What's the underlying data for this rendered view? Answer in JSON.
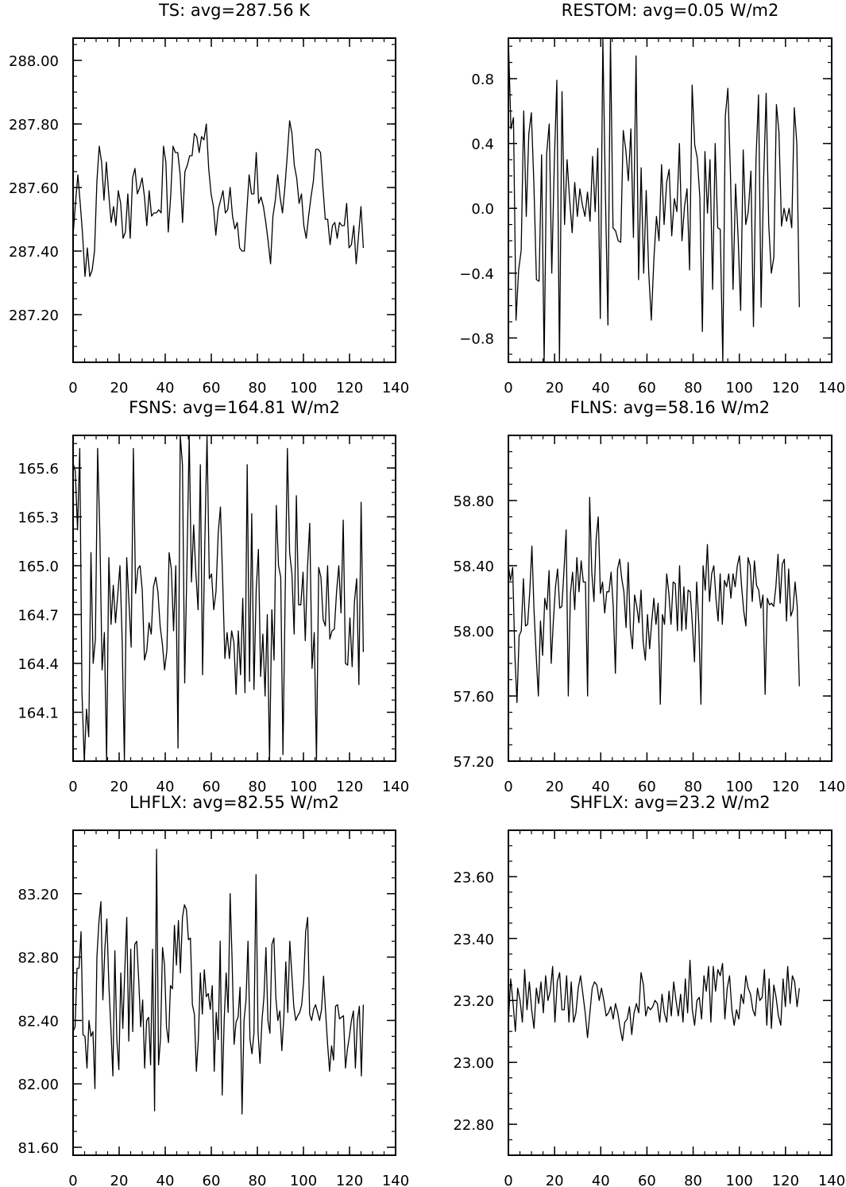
{
  "chart_data": [
    {
      "type": "line",
      "title": "TS: avg=287.56 K",
      "xlabel": "",
      "ylabel": "",
      "xlim": [
        0,
        140
      ],
      "ylim": [
        287.05,
        288.07
      ],
      "xticks": [
        0,
        20,
        40,
        60,
        80,
        100,
        120,
        140
      ],
      "xtick_labels": [
        "0",
        "20",
        "40",
        "60",
        "80",
        "100",
        "120",
        "140"
      ],
      "yticks": [
        287.2,
        287.4,
        287.6,
        287.8,
        288.0
      ],
      "ytick_labels": [
        "287.20",
        "287.40",
        "287.60",
        "287.80",
        "288.00"
      ],
      "grid": false,
      "series": [
        {
          "values": [
            287.45,
            287.55,
            287.64,
            287.55,
            287.45,
            287.32,
            287.41,
            287.32,
            287.34,
            287.4,
            287.62,
            287.73,
            287.68,
            287.56,
            287.68,
            287.58,
            287.49,
            287.54,
            287.48,
            287.59,
            287.55,
            287.44,
            287.46,
            287.58,
            287.44,
            287.63,
            287.66,
            287.58,
            287.6,
            287.63,
            287.57,
            287.48,
            287.59,
            287.51,
            287.52,
            287.52,
            287.53,
            287.52,
            287.73,
            287.68,
            287.46,
            287.57,
            287.73,
            287.71,
            287.71,
            287.64,
            287.49,
            287.65,
            287.67,
            287.7,
            287.7,
            287.77,
            287.76,
            287.71,
            287.76,
            287.75,
            287.8,
            287.66,
            287.58,
            287.54,
            287.45,
            287.53,
            287.56,
            287.59,
            287.52,
            287.53,
            287.6,
            287.51,
            287.47,
            287.49,
            287.41,
            287.4,
            287.4,
            287.52,
            287.64,
            287.58,
            287.58,
            287.71,
            287.55,
            287.57,
            287.54,
            287.49,
            287.43,
            287.36,
            287.51,
            287.56,
            287.64,
            287.57,
            287.52,
            287.6,
            287.7,
            287.81,
            287.77,
            287.67,
            287.63,
            287.55,
            287.58,
            287.48,
            287.44,
            287.51,
            287.57,
            287.62,
            287.72,
            287.72,
            287.71,
            287.6,
            287.5,
            287.5,
            287.42,
            287.48,
            287.49,
            287.44,
            287.49,
            287.48,
            287.48,
            287.55,
            287.41,
            287.42,
            287.48,
            287.36,
            287.45,
            287.54,
            287.41
          ]
        }
      ]
    },
    {
      "type": "line",
      "title": "RESTOM: avg=0.05 W/m2",
      "xlabel": "",
      "ylabel": "",
      "xlim": [
        0,
        140
      ],
      "ylim": [
        -0.95,
        1.05
      ],
      "xticks": [
        0,
        20,
        40,
        60,
        80,
        100,
        120,
        140
      ],
      "xtick_labels": [
        "0",
        "20",
        "40",
        "60",
        "80",
        "100",
        "120",
        "140"
      ],
      "yticks": [
        -0.8,
        -0.4,
        0.0,
        0.4,
        0.8
      ],
      "ytick_labels": [
        "−0.8",
        "−0.4",
        "0.0",
        "0.4",
        "0.8"
      ],
      "grid": false,
      "series": [
        {
          "values": [
            1.05,
            0.49,
            0.56,
            -0.69,
            -0.38,
            -0.26,
            0.6,
            -0.05,
            0.46,
            0.59,
            0.15,
            -0.44,
            -0.45,
            0.33,
            -0.95,
            0.34,
            0.52,
            -0.4,
            0.28,
            0.79,
            -0.95,
            0.72,
            -0.1,
            0.3,
            0.05,
            -0.15,
            0.16,
            -0.05,
            0.12,
            0.02,
            -0.05,
            0.1,
            -0.08,
            0.32,
            -0.02,
            0.37,
            -0.68,
            1.05,
            0.1,
            -0.72,
            1.05,
            -0.12,
            -0.14,
            -0.2,
            -0.21,
            0.48,
            0.36,
            0.17,
            0.49,
            -0.18,
            0.94,
            -0.44,
            0.25,
            -0.4,
            0.11,
            -0.4,
            -0.69,
            -0.31,
            -0.05,
            -0.2,
            0.27,
            -0.1,
            0.16,
            0.24,
            -0.17,
            0.06,
            -0.02,
            0.4,
            -0.2,
            0.01,
            0.12,
            -0.38,
            0.76,
            0.39,
            0.31,
            0.07,
            -0.76,
            0.35,
            -0.03,
            0.3,
            -0.5,
            0.4,
            -0.12,
            -0.13,
            -0.95,
            0.57,
            0.74,
            0.22,
            -0.5,
            0.15,
            -0.18,
            -0.63,
            0.36,
            -0.1,
            -0.02,
            0.23,
            -0.73,
            0.3,
            0.7,
            -0.61,
            0.18,
            0.71,
            -0.1,
            -0.4,
            -0.3,
            0.64,
            0.47,
            -0.11,
            0.0,
            -0.08,
            0.0,
            -0.12,
            0.62,
            0.4,
            -0.61
          ]
        }
      ]
    },
    {
      "type": "line",
      "title": "FSNS: avg=164.81 W/m2",
      "xlabel": "",
      "ylabel": "",
      "xlim": [
        0,
        140
      ],
      "ylim": [
        163.8,
        165.8
      ],
      "xticks": [
        0,
        20,
        40,
        60,
        80,
        100,
        120,
        140
      ],
      "xtick_labels": [
        "0",
        "20",
        "40",
        "60",
        "80",
        "100",
        "120",
        "140"
      ],
      "yticks": [
        164.1,
        164.4,
        164.7,
        165.0,
        165.3,
        165.6
      ],
      "ytick_labels": [
        "164.1",
        "164.4",
        "164.7",
        "165.0",
        "165.3",
        "165.6"
      ],
      "grid": false,
      "series": [
        {
          "values": [
            165.63,
            165.58,
            165.22,
            165.72,
            164.22,
            163.8,
            164.12,
            163.95,
            165.08,
            164.4,
            164.55,
            165.72,
            165.2,
            164.36,
            164.59,
            163.8,
            165.05,
            164.64,
            164.88,
            164.65,
            164.82,
            165.0,
            164.54,
            163.8,
            165.05,
            164.78,
            164.5,
            165.72,
            164.83,
            164.98,
            165.0,
            164.85,
            164.42,
            164.48,
            164.65,
            164.58,
            164.87,
            164.93,
            164.84,
            164.63,
            164.52,
            164.36,
            164.48,
            165.08,
            164.98,
            164.6,
            165.0,
            163.88,
            165.8,
            165.62,
            164.28,
            165.0,
            165.8,
            164.9,
            165.25,
            164.95,
            164.73,
            165.62,
            164.33,
            165.13,
            165.8,
            164.92,
            164.95,
            164.73,
            164.84,
            165.2,
            165.36,
            164.91,
            164.43,
            164.59,
            164.43,
            164.6,
            164.53,
            164.21,
            164.6,
            164.33,
            164.8,
            164.22,
            165.62,
            164.29,
            165.32,
            164.24,
            164.85,
            165.1,
            164.32,
            164.58,
            164.2,
            164.7,
            163.8,
            164.73,
            164.42,
            165.37,
            165.0,
            164.93,
            163.84,
            164.82,
            165.72,
            165.08,
            164.95,
            164.58,
            165.43,
            164.76,
            164.76,
            164.96,
            164.54,
            164.99,
            165.26,
            164.37,
            164.59,
            163.8,
            164.99,
            164.93,
            164.67,
            164.63,
            165.0,
            164.55,
            164.6,
            164.61,
            164.84,
            165.0,
            164.71,
            165.28,
            164.4,
            164.39,
            164.68,
            164.38,
            164.78,
            164.92,
            164.27,
            165.39,
            164.47
          ]
        }
      ]
    },
    {
      "type": "line",
      "title": "FLNS: avg=58.16 W/m2",
      "xlabel": "",
      "ylabel": "",
      "xlim": [
        0,
        140
      ],
      "ylim": [
        57.2,
        59.2
      ],
      "xticks": [
        0,
        20,
        40,
        60,
        80,
        100,
        120,
        140
      ],
      "xtick_labels": [
        "0",
        "20",
        "40",
        "60",
        "80",
        "100",
        "120",
        "140"
      ],
      "yticks": [
        57.2,
        57.6,
        58.0,
        58.4,
        58.8
      ],
      "ytick_labels": [
        "57.20",
        "57.60",
        "58.00",
        "58.40",
        "58.80"
      ],
      "grid": false,
      "series": [
        {
          "values": [
            58.4,
            58.31,
            58.39,
            57.86,
            57.56,
            57.97,
            58.0,
            58.32,
            58.03,
            58.04,
            58.24,
            58.52,
            58.12,
            57.85,
            57.6,
            58.06,
            57.85,
            58.2,
            58.13,
            58.37,
            57.8,
            58.06,
            58.27,
            58.38,
            58.14,
            58.15,
            58.37,
            58.62,
            57.6,
            58.23,
            58.36,
            58.13,
            58.45,
            58.24,
            58.43,
            58.3,
            58.3,
            57.6,
            58.82,
            58.36,
            58.18,
            58.56,
            58.7,
            58.23,
            58.3,
            58.11,
            58.24,
            58.24,
            58.36,
            58.15,
            57.74,
            58.38,
            58.44,
            58.32,
            58.24,
            58.02,
            58.42,
            58.01,
            57.89,
            58.22,
            58.15,
            58.05,
            58.25,
            57.93,
            57.82,
            58.1,
            57.89,
            58.06,
            58.2,
            58.04,
            58.17,
            57.55,
            58.1,
            58.04,
            58.35,
            58.23,
            58.04,
            58.3,
            58.29,
            58.0,
            58.4,
            58.0,
            58.27,
            58.01,
            58.25,
            58.24,
            58.04,
            57.81,
            58.3,
            58.04,
            57.55,
            58.4,
            58.25,
            58.53,
            58.18,
            58.35,
            58.4,
            58.2,
            58.06,
            58.35,
            58.04,
            58.31,
            58.27,
            58.35,
            58.2,
            58.35,
            58.27,
            58.4,
            58.46,
            58.27,
            58.12,
            58.03,
            58.45,
            58.4,
            58.18,
            58.43,
            58.28,
            58.25,
            58.14,
            58.22,
            57.61,
            58.2,
            58.16,
            58.17,
            58.15,
            58.27,
            58.47,
            58.17,
            58.41,
            58.44,
            58.06,
            58.38,
            58.09,
            58.13,
            58.3,
            58.15,
            57.66
          ]
        }
      ]
    },
    {
      "type": "line",
      "title": "LHFLX: avg=82.55 W/m2",
      "xlabel": "",
      "ylabel": "",
      "xlim": [
        0,
        140
      ],
      "ylim": [
        81.55,
        83.6
      ],
      "xticks": [
        0,
        20,
        40,
        60,
        80,
        100,
        120,
        140
      ],
      "xtick_labels": [
        "0",
        "20",
        "40",
        "60",
        "80",
        "100",
        "120",
        "140"
      ],
      "yticks": [
        81.6,
        82.0,
        82.4,
        82.8,
        83.2
      ],
      "ytick_labels": [
        "81.60",
        "82.00",
        "82.40",
        "82.80",
        "83.20"
      ],
      "grid": false,
      "series": [
        {
          "values": [
            82.33,
            82.36,
            82.73,
            82.73,
            82.96,
            82.31,
            82.3,
            82.1,
            82.4,
            82.3,
            82.33,
            81.97,
            82.8,
            83.02,
            83.15,
            82.53,
            82.85,
            83.04,
            82.63,
            82.35,
            82.05,
            82.84,
            82.28,
            82.09,
            82.7,
            82.35,
            82.72,
            83.05,
            82.27,
            82.85,
            82.33,
            82.88,
            82.9,
            82.66,
            82.36,
            82.53,
            82.1,
            82.4,
            82.42,
            82.12,
            82.85,
            81.83,
            83.48,
            82.12,
            82.29,
            82.86,
            82.75,
            82.36,
            82.26,
            82.62,
            82.6,
            83.0,
            82.75,
            83.03,
            82.7,
            83.05,
            83.13,
            83.1,
            82.91,
            82.92,
            82.5,
            82.44,
            82.08,
            82.28,
            82.7,
            82.44,
            82.72,
            82.55,
            82.57,
            82.47,
            82.62,
            82.08,
            82.45,
            82.28,
            82.9,
            81.93,
            82.4,
            82.7,
            82.45,
            83.2,
            82.78,
            82.25,
            82.39,
            82.42,
            82.61,
            81.81,
            82.4,
            82.53,
            82.9,
            82.28,
            82.19,
            82.32,
            83.32,
            82.33,
            82.13,
            82.4,
            82.55,
            82.86,
            82.4,
            82.32,
            82.88,
            82.92,
            82.54,
            82.4,
            82.46,
            82.21,
            82.42,
            82.77,
            82.45,
            82.9,
            82.7,
            82.49,
            82.4,
            82.43,
            82.45,
            82.5,
            82.65,
            82.96,
            83.05,
            82.44,
            82.4,
            82.47,
            82.5,
            82.45,
            82.4,
            82.47,
            82.68,
            82.46,
            82.25,
            82.08,
            82.24,
            82.15,
            82.49,
            82.5,
            82.41,
            82.42,
            82.43,
            82.1,
            82.22,
            82.3,
            82.4,
            82.46,
            82.1,
            82.4,
            82.49,
            82.05,
            82.5
          ]
        }
      ]
    },
    {
      "type": "line",
      "title": "SHFLX: avg=23.2 W/m2",
      "xlabel": "",
      "ylabel": "",
      "xlim": [
        0,
        140
      ],
      "ylim": [
        22.7,
        23.75
      ],
      "xticks": [
        0,
        20,
        40,
        60,
        80,
        100,
        120,
        140
      ],
      "xtick_labels": [
        "0",
        "20",
        "40",
        "60",
        "80",
        "100",
        "120",
        "140"
      ],
      "yticks": [
        22.8,
        23.0,
        23.2,
        23.4,
        23.6
      ],
      "ytick_labels": [
        "22.80",
        "23.00",
        "23.20",
        "23.40",
        "23.60"
      ],
      "grid": false,
      "series": [
        {
          "values": [
            23.13,
            23.27,
            23.19,
            23.1,
            23.24,
            23.2,
            23.13,
            23.3,
            23.17,
            23.26,
            23.17,
            23.11,
            23.24,
            23.19,
            23.26,
            23.16,
            23.28,
            23.2,
            23.23,
            23.31,
            23.13,
            23.26,
            23.29,
            23.17,
            23.17,
            23.28,
            23.13,
            23.26,
            23.13,
            23.16,
            23.24,
            23.28,
            23.22,
            23.16,
            23.08,
            23.16,
            23.24,
            23.26,
            23.25,
            23.2,
            23.24,
            23.2,
            23.15,
            23.16,
            23.18,
            23.14,
            23.19,
            23.16,
            23.11,
            23.07,
            23.13,
            23.14,
            23.18,
            23.09,
            23.16,
            23.19,
            23.16,
            23.29,
            23.25,
            23.15,
            23.18,
            23.17,
            23.18,
            23.2,
            23.19,
            23.13,
            23.22,
            23.16,
            23.13,
            23.23,
            23.15,
            23.26,
            23.2,
            23.15,
            23.22,
            23.13,
            23.27,
            23.16,
            23.33,
            23.17,
            23.12,
            23.2,
            23.21,
            23.14,
            23.28,
            23.23,
            23.31,
            23.13,
            23.31,
            23.23,
            23.3,
            23.28,
            23.32,
            23.14,
            23.24,
            23.28,
            23.17,
            23.12,
            23.17,
            23.14,
            23.22,
            23.19,
            23.28,
            23.24,
            23.22,
            23.17,
            23.15,
            23.24,
            23.2,
            23.21,
            23.3,
            23.12,
            23.27,
            23.11,
            23.25,
            23.21,
            23.15,
            23.12,
            23.27,
            23.18,
            23.31,
            23.19,
            23.28,
            23.26,
            23.18,
            23.24
          ]
        }
      ]
    }
  ]
}
